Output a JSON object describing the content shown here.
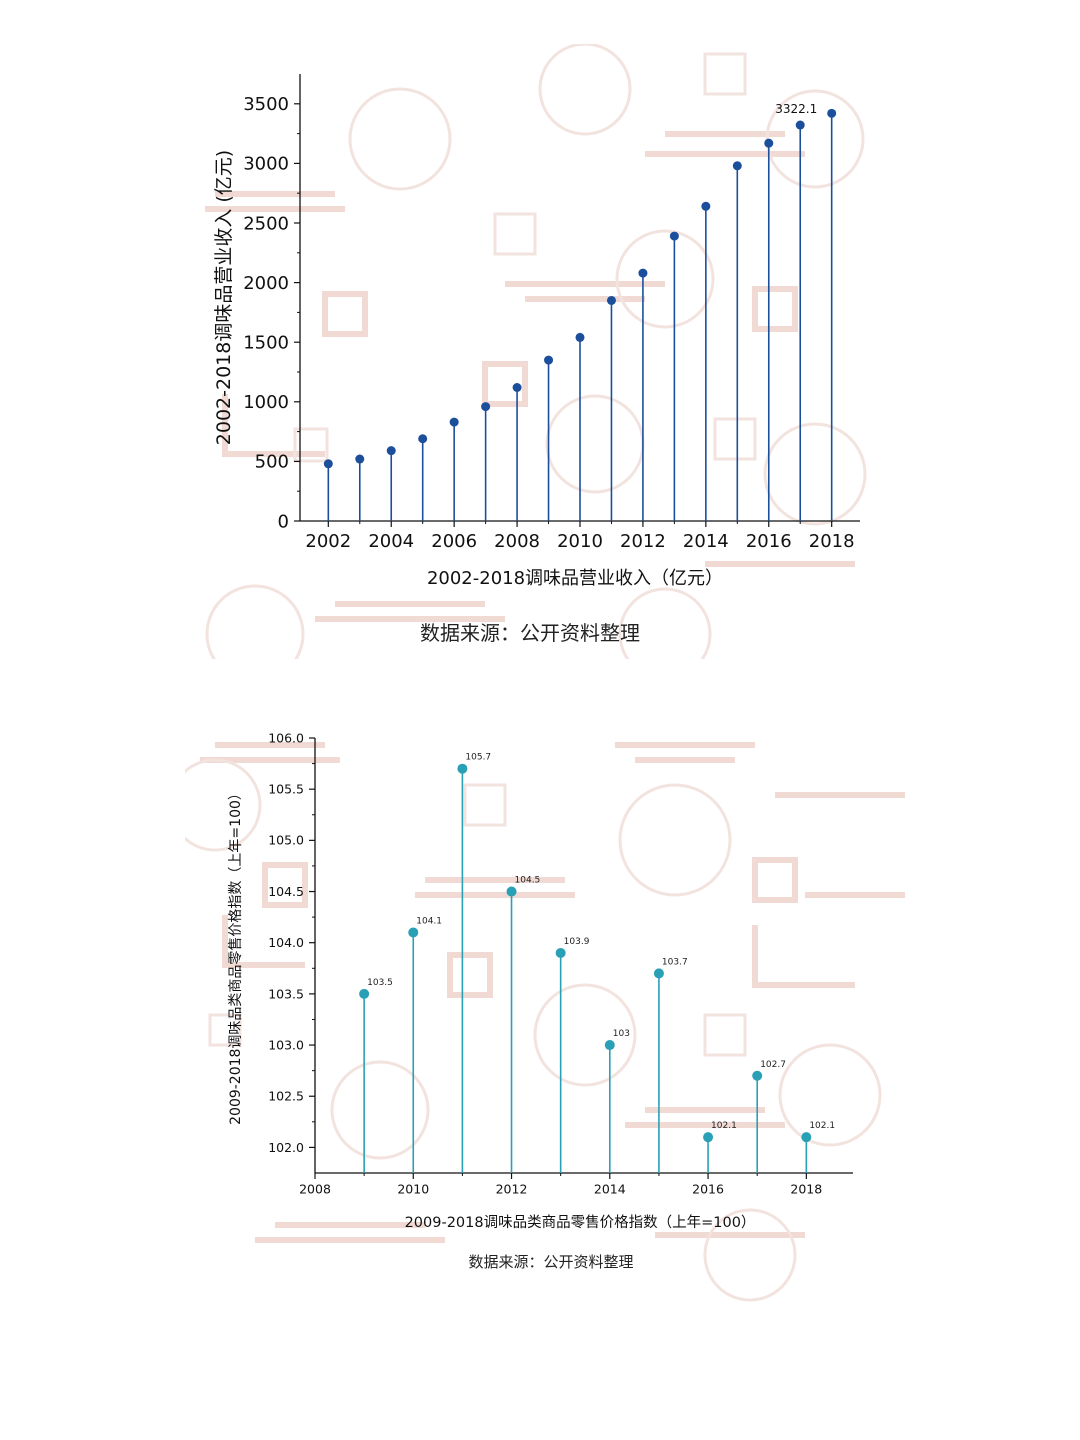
{
  "charts": [
    {
      "source": "数据来源：公开资料整理",
      "chart_data": {
        "type": "lollipop",
        "x": [
          2002,
          2003,
          2004,
          2005,
          2006,
          2007,
          2008,
          2009,
          2010,
          2011,
          2012,
          2013,
          2014,
          2015,
          2016,
          2017,
          2018
        ],
        "values": [
          480,
          520,
          590,
          690,
          830,
          960,
          1120,
          1350,
          1540,
          1850,
          2080,
          2390,
          2640,
          2980,
          3170,
          3322.1,
          3420
        ],
        "title": "",
        "xlabel": "2002-2018调味品营业收入（亿元）",
        "ylabel": "2002-2018调味品营业收入 (亿元)",
        "xticks": [
          "2002",
          "2004",
          "2006",
          "2008",
          "2010",
          "2012",
          "2014",
          "2016",
          "2018"
        ],
        "yticks": [
          "0",
          "500",
          "1000",
          "1500",
          "2000",
          "2500",
          "3000",
          "3500"
        ],
        "xlim": [
          2001.1,
          2018.9
        ],
        "ylim": [
          0,
          3750
        ],
        "annotations": [
          {
            "index": 15,
            "text": "3322.1"
          }
        ],
        "color": "#1b4f9c",
        "grid": false
      }
    },
    {
      "source": "数据来源：公开资料整理",
      "chart_data": {
        "type": "lollipop",
        "x": [
          2009,
          2010,
          2011,
          2012,
          2013,
          2014,
          2015,
          2016,
          2017,
          2018
        ],
        "values": [
          103.5,
          104.1,
          105.7,
          104.5,
          103.9,
          103,
          103.7,
          102.1,
          102.7,
          102.1
        ],
        "labels": [
          "103.5",
          "104.1",
          "105.7",
          "104.5",
          "103.9",
          "103",
          "103.7",
          "102.1",
          "102.7",
          "102.1"
        ],
        "title": "",
        "xlabel": "2009-2018调味品类商品零售价格指数（上年=100）",
        "ylabel": "2009-2018调味品类商品零售价格指数（上年=100）",
        "xticks": [
          "2008",
          "2010",
          "2012",
          "2014",
          "2016",
          "2018"
        ],
        "yticks": [
          "102.0",
          "102.5",
          "103.0",
          "103.5",
          "104.0",
          "104.5",
          "105.0",
          "105.5",
          "106.0"
        ],
        "xlim": [
          2008,
          2018.95
        ],
        "ylim": [
          101.75,
          106.0
        ],
        "color": "#2aa0b6",
        "grid": false
      }
    }
  ]
}
